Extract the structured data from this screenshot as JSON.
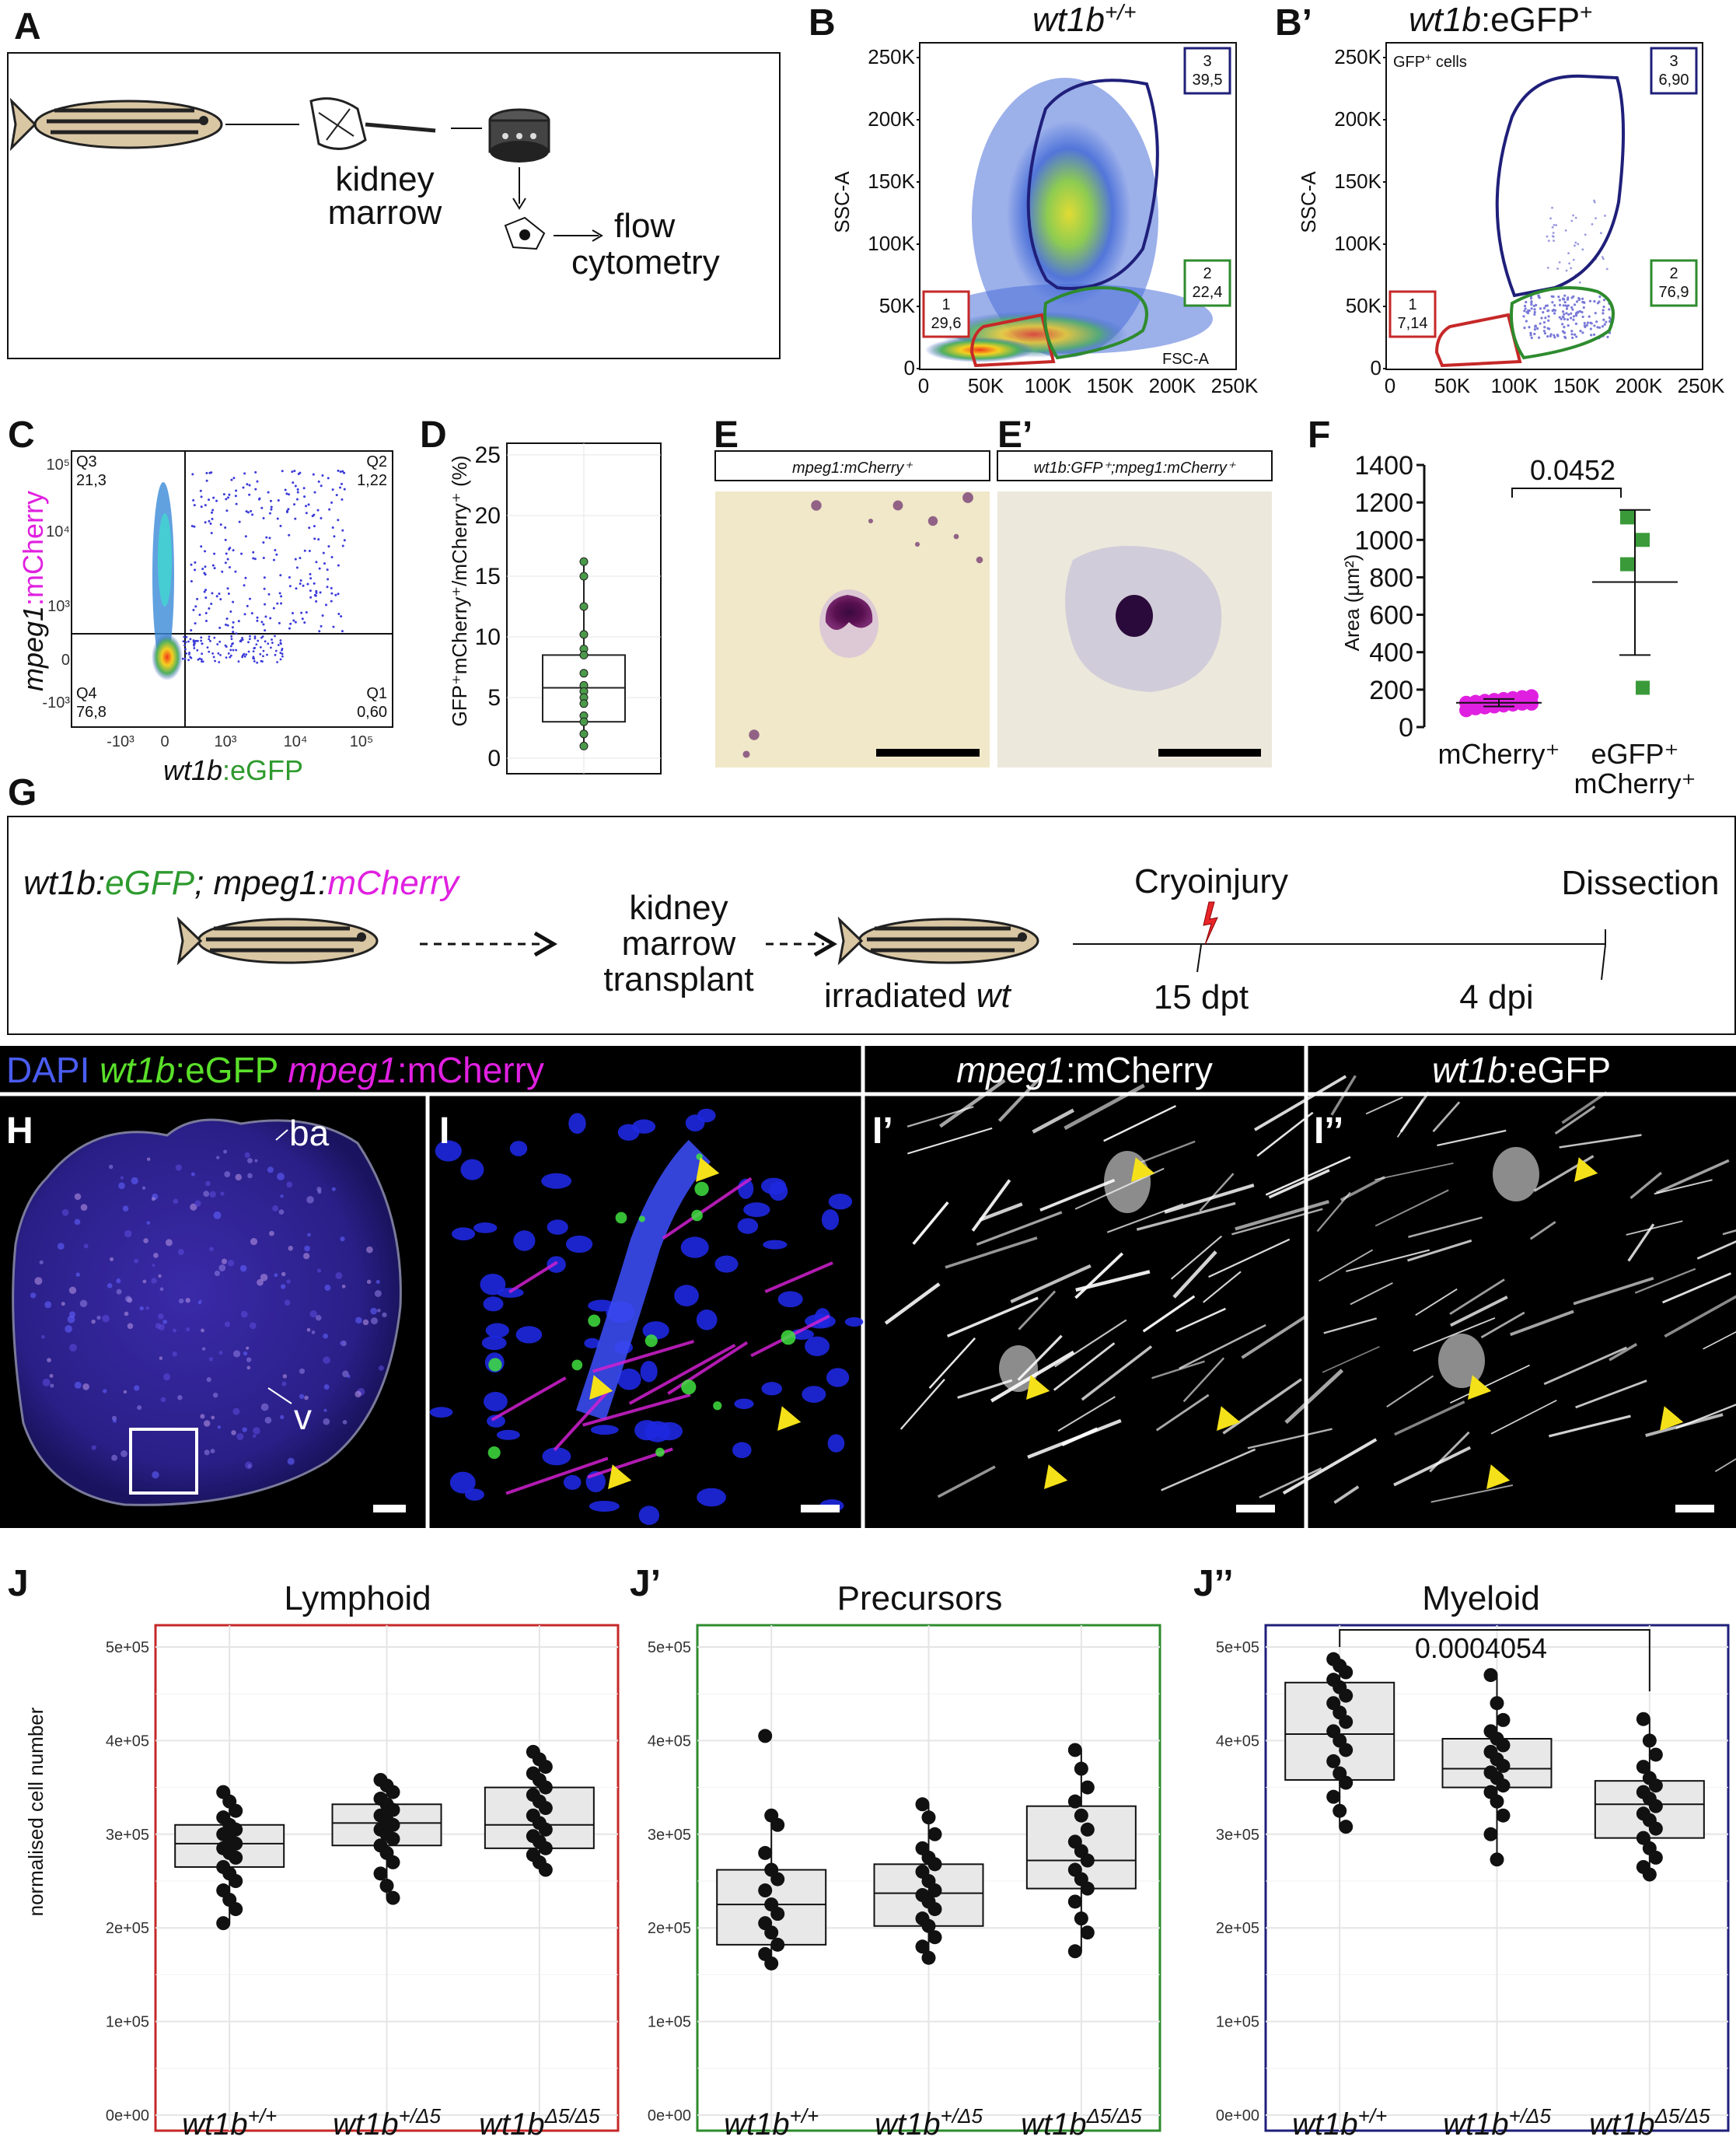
{
  "panels": {
    "A": {
      "letter": "A",
      "kidney": "kidney",
      "marrow": "marrow",
      "flow": "flow",
      "cytometry": "cytometry"
    },
    "B": {
      "letter": "B",
      "title_gene": "wt1b",
      "title_sup": "+/+",
      "ylabel": "SSC-A",
      "xlabel": "FSC-A",
      "gates": [
        {
          "n": "1",
          "v": "29,6",
          "color": "#c62828"
        },
        {
          "n": "2",
          "v": "22,4",
          "color": "#2e8b2e"
        },
        {
          "n": "3",
          "v": "39,5",
          "color": "#1f1f7a"
        }
      ]
    },
    "B2": {
      "letter": "B’",
      "title_gene": "wt1b",
      "title_rest": ":eGFP",
      "title_sup": "+",
      "inner": "GFP",
      "inner_sup": "+",
      "inner_rest": " cells",
      "ylabel": "SSC-A",
      "gates": [
        {
          "n": "1",
          "v": "7,14",
          "color": "#c62828"
        },
        {
          "n": "2",
          "v": "76,9",
          "color": "#2e8b2e"
        },
        {
          "n": "3",
          "v": "6,90",
          "color": "#1f1f7a"
        }
      ]
    },
    "B_ticks_y": [
      "250K",
      "200K",
      "150K",
      "100K",
      "50K",
      "0"
    ],
    "B_ticks_x": [
      "0",
      "50K",
      "100K",
      "150K",
      "200K",
      "250K"
    ],
    "C": {
      "letter": "C",
      "ylabel_gene": "mpeg1",
      "ylabel_rest": ":mCherry",
      "xlabel_gene": "wt1b",
      "xlabel_rest": ":eGFP",
      "quads": [
        {
          "q": "Q3",
          "v": "21,3"
        },
        {
          "q": "Q2",
          "v": "1,22"
        },
        {
          "q": "Q4",
          "v": "76,8"
        },
        {
          "q": "Q1",
          "v": "0,60"
        }
      ]
    },
    "D": {
      "letter": "D",
      "ylabel": "GFP⁺mCherry⁺/mCherry⁺ (%)",
      "yticks": [
        "0",
        "5",
        "10",
        "15",
        "20",
        "25"
      ]
    },
    "E": {
      "letter": "E",
      "label": "mpeg1:mCherry⁺"
    },
    "E2": {
      "letter": "E’",
      "label": "wt1b:GFP⁺;mpeg1:mCherry⁺"
    },
    "F": {
      "letter": "F",
      "ylabel": "Area (µm²)",
      "pvalue": "0.0452",
      "yticks": [
        "0",
        "200",
        "400",
        "600",
        "800",
        "1000",
        "1200",
        "1400"
      ],
      "groups": [
        "mCherry⁺",
        "eGFP⁺",
        "mCherry⁺"
      ]
    },
    "G": {
      "letter": "G",
      "donor_a": "wt1b:",
      "donor_b": "eGFP",
      "donor_c": "; mpeg1:",
      "donor_d": "mCherry",
      "step1a": "kidney",
      "step1b": "marrow",
      "step1c": "transplant",
      "recipient_a": "irradiated ",
      "recipient_b": "wt",
      "event1": "Cryoinjury",
      "event2": "Dissection",
      "t1": "15 dpt",
      "t2": "4 dpi"
    },
    "H": {
      "letter": "H",
      "header_dapi": "DAPI ",
      "header_wt1b": "wt1b",
      "header_egfp": ":eGFP ",
      "header_mpeg": "mpeg1",
      "header_mch": ":mCherry",
      "ba": "ba",
      "v": "v"
    },
    "I": {
      "letter": "I"
    },
    "I2": {
      "letter": "I’",
      "header_gene": "mpeg1",
      "header_rest": ":mCherry"
    },
    "I3": {
      "letter": "I’’",
      "header_gene": "wt1b",
      "header_rest": ":eGFP"
    },
    "J_ylabel": "normalised cell number",
    "J_yticks": [
      "0e+00",
      "1e+05",
      "2e+05",
      "3e+05",
      "4e+05",
      "5e+05"
    ],
    "J_xlabels": [
      {
        "g": "wt1b",
        "s": "+/+"
      },
      {
        "g": "wt1b",
        "s": "+/Δ5"
      },
      {
        "g": "wt1b",
        "s": "Δ5/Δ5"
      }
    ],
    "J": {
      "letter": "J",
      "title": "Lymphoid",
      "border": "#c62828"
    },
    "J2": {
      "letter": "J’",
      "title": "Precursors",
      "border": "#2e8b2e"
    },
    "J3": {
      "letter": "J’’",
      "title": "Myeloid",
      "border": "#1f1f7a",
      "pvalue": "0.0004054"
    }
  },
  "chart_data": [
    {
      "type": "box",
      "panel": "D",
      "ylabel": "GFP⁺mCherry⁺/mCherry⁺ (%)",
      "ylim": [
        0,
        25
      ],
      "box": {
        "min": 1.0,
        "q1": 3.0,
        "median": 5.8,
        "q3": 8.5,
        "max": 16.2
      },
      "points": [
        16.2,
        15.0,
        12.5,
        10.2,
        9.0,
        8.5,
        7.0,
        6.0,
        5.5,
        5.0,
        4.5,
        3.5,
        3.0,
        2.0,
        1.0
      ]
    },
    {
      "type": "scatter",
      "panel": "F",
      "ylabel": "Area (µm²)",
      "ylim": [
        0,
        1400
      ],
      "groups": [
        {
          "name": "mCherry⁺",
          "color": "#e020e0",
          "mean": 130,
          "sd_low": 110,
          "sd_high": 150,
          "values": [
            90,
            100,
            105,
            110,
            115,
            120,
            125,
            125,
            130,
            135,
            140,
            145,
            150,
            155,
            160,
            165
          ]
        },
        {
          "name": "eGFP⁺ mCherry⁺",
          "color": "#3a9a3a",
          "mean": 775,
          "sd_low": 385,
          "sd_high": 1160,
          "values": [
            1120,
            1000,
            870,
            210
          ]
        }
      ],
      "pvalue": "0.0452"
    },
    {
      "type": "box",
      "panel": "J",
      "title": "Lymphoid",
      "ylabel": "normalised cell number",
      "ylim": [
        0,
        500000
      ],
      "categories": [
        "wt1b+/+",
        "wt1b+/Δ5",
        "wt1b Δ5/Δ5"
      ],
      "boxes": [
        {
          "min": 205000,
          "q1": 265000,
          "median": 290000,
          "q3": 310000,
          "max": 345000,
          "points": [
            345000,
            335000,
            325000,
            318000,
            310000,
            305000,
            300000,
            295000,
            290000,
            285000,
            280000,
            275000,
            265000,
            258000,
            250000,
            240000,
            230000,
            220000,
            205000
          ]
        },
        {
          "min": 232000,
          "q1": 288000,
          "median": 312000,
          "q3": 332000,
          "max": 358000,
          "points": [
            358000,
            352000,
            345000,
            338000,
            332000,
            326000,
            320000,
            315000,
            310000,
            305000,
            300000,
            295000,
            288000,
            280000,
            270000,
            258000,
            245000,
            232000
          ]
        },
        {
          "min": 262000,
          "q1": 285000,
          "median": 310000,
          "q3": 350000,
          "max": 388000,
          "points": [
            388000,
            380000,
            372000,
            365000,
            358000,
            350000,
            342000,
            335000,
            328000,
            320000,
            312000,
            305000,
            298000,
            292000,
            285000,
            278000,
            270000,
            262000
          ]
        }
      ]
    },
    {
      "type": "box",
      "panel": "J’",
      "title": "Precursors",
      "ylabel": "normalised cell number",
      "ylim": [
        0,
        500000
      ],
      "categories": [
        "wt1b+/+",
        "wt1b+/Δ5",
        "wt1b Δ5/Δ5"
      ],
      "boxes": [
        {
          "min": 162000,
          "q1": 182000,
          "median": 225000,
          "q3": 262000,
          "max": 320000,
          "outlier": 405000,
          "points": [
            405000,
            320000,
            310000,
            280000,
            262000,
            252000,
            240000,
            225000,
            215000,
            205000,
            195000,
            182000,
            172000,
            162000
          ]
        },
        {
          "min": 168000,
          "q1": 202000,
          "median": 237000,
          "q3": 268000,
          "max": 332000,
          "points": [
            332000,
            318000,
            300000,
            285000,
            275000,
            268000,
            260000,
            250000,
            240000,
            235000,
            228000,
            220000,
            210000,
            202000,
            190000,
            180000,
            168000
          ]
        },
        {
          "min": 175000,
          "q1": 242000,
          "median": 272000,
          "q3": 330000,
          "max": 390000,
          "points": [
            390000,
            370000,
            350000,
            335000,
            320000,
            305000,
            292000,
            282000,
            272000,
            262000,
            252000,
            242000,
            228000,
            210000,
            195000,
            175000
          ]
        }
      ]
    },
    {
      "type": "box",
      "panel": "J’’",
      "title": "Myeloid",
      "ylabel": "normalised cell number",
      "ylim": [
        0,
        500000
      ],
      "categories": [
        "wt1b+/+",
        "wt1b+/Δ5",
        "wt1b Δ5/Δ5"
      ],
      "boxes": [
        {
          "min": 308000,
          "q1": 358000,
          "median": 407000,
          "q3": 462000,
          "max": 487000,
          "points": [
            487000,
            480000,
            473000,
            465000,
            457000,
            448000,
            440000,
            430000,
            420000,
            410000,
            400000,
            390000,
            378000,
            365000,
            355000,
            340000,
            325000,
            308000
          ]
        },
        {
          "min": 273000,
          "q1": 350000,
          "median": 370000,
          "q3": 402000,
          "max": 470000,
          "points": [
            470000,
            440000,
            422000,
            410000,
            402000,
            395000,
            388000,
            380000,
            373000,
            366000,
            360000,
            352000,
            345000,
            335000,
            320000,
            300000,
            273000
          ]
        },
        {
          "min": 257000,
          "q1": 296000,
          "median": 332000,
          "q3": 357000,
          "max": 423000,
          "points": [
            423000,
            400000,
            385000,
            372000,
            360000,
            352000,
            345000,
            338000,
            330000,
            322000,
            315000,
            306000,
            296000,
            285000,
            275000,
            265000,
            257000
          ]
        }
      ],
      "pvalue": "0.0004054"
    }
  ]
}
